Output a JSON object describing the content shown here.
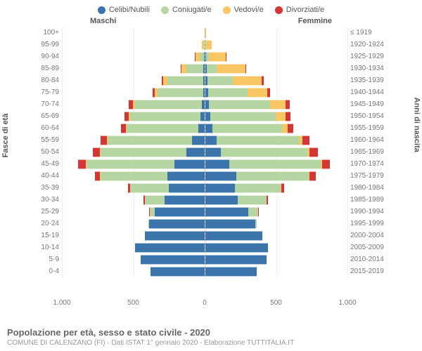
{
  "legend": [
    {
      "label": "Celibi/Nubili",
      "color": "#3a74ab"
    },
    {
      "label": "Coniugati/e",
      "color": "#b5d6a3"
    },
    {
      "label": "Vedovi/e",
      "color": "#f8c662"
    },
    {
      "label": "Divorziati/e",
      "color": "#d43535"
    }
  ],
  "header_male": "Maschi",
  "header_female": "Femmine",
  "y_left_label": "Fasce di età",
  "y_right_label": "Anni di nascita",
  "x_ticks": [
    {
      "label": "1.000",
      "pos": 0
    },
    {
      "label": "500",
      "pos": 25
    },
    {
      "label": "0",
      "pos": 50
    },
    {
      "label": "500",
      "pos": 75
    },
    {
      "label": "1.000",
      "pos": 100
    }
  ],
  "colors": {
    "single": "#3a74ab",
    "married": "#b5d6a3",
    "widowed": "#f8c662",
    "divorced": "#d43535"
  },
  "max_value": 1000,
  "rows": [
    {
      "age": "100+",
      "year": "≤ 1919",
      "m": [
        0,
        0,
        2,
        0
      ],
      "f": [
        0,
        0,
        5,
        0
      ]
    },
    {
      "age": "95-99",
      "year": "1920-1924",
      "m": [
        0,
        5,
        15,
        0
      ],
      "f": [
        0,
        5,
        40,
        0
      ]
    },
    {
      "age": "90-94",
      "year": "1925-1929",
      "m": [
        5,
        30,
        30,
        2
      ],
      "f": [
        5,
        20,
        120,
        5
      ]
    },
    {
      "age": "85-89",
      "year": "1930-1934",
      "m": [
        8,
        120,
        35,
        5
      ],
      "f": [
        10,
        70,
        200,
        8
      ]
    },
    {
      "age": "80-84",
      "year": "1935-1939",
      "m": [
        10,
        250,
        30,
        10
      ],
      "f": [
        15,
        180,
        200,
        15
      ]
    },
    {
      "age": "75-79",
      "year": "1940-1944",
      "m": [
        12,
        320,
        20,
        15
      ],
      "f": [
        18,
        280,
        140,
        20
      ]
    },
    {
      "age": "70-74",
      "year": "1945-1949",
      "m": [
        20,
        470,
        15,
        25
      ],
      "f": [
        25,
        430,
        110,
        30
      ]
    },
    {
      "age": "65-69",
      "year": "1950-1954",
      "m": [
        30,
        490,
        10,
        30
      ],
      "f": [
        35,
        460,
        70,
        35
      ]
    },
    {
      "age": "60-64",
      "year": "1955-1959",
      "m": [
        45,
        500,
        8,
        35
      ],
      "f": [
        50,
        490,
        40,
        40
      ]
    },
    {
      "age": "55-59",
      "year": "1960-1964",
      "m": [
        90,
        590,
        5,
        45
      ],
      "f": [
        80,
        580,
        25,
        50
      ]
    },
    {
      "age": "50-54",
      "year": "1965-1969",
      "m": [
        130,
        600,
        4,
        50
      ],
      "f": [
        110,
        610,
        15,
        55
      ]
    },
    {
      "age": "45-49",
      "year": "1970-1974",
      "m": [
        210,
        620,
        3,
        55
      ],
      "f": [
        170,
        640,
        10,
        55
      ]
    },
    {
      "age": "40-44",
      "year": "1975-1979",
      "m": [
        260,
        470,
        2,
        35
      ],
      "f": [
        220,
        510,
        5,
        40
      ]
    },
    {
      "age": "35-39",
      "year": "1980-1984",
      "m": [
        250,
        270,
        1,
        15
      ],
      "f": [
        210,
        320,
        3,
        20
      ]
    },
    {
      "age": "30-34",
      "year": "1985-1989",
      "m": [
        280,
        140,
        0,
        8
      ],
      "f": [
        230,
        200,
        1,
        10
      ]
    },
    {
      "age": "25-29",
      "year": "1990-1994",
      "m": [
        350,
        35,
        0,
        2
      ],
      "f": [
        300,
        70,
        0,
        3
      ]
    },
    {
      "age": "20-24",
      "year": "1995-1999",
      "m": [
        390,
        5,
        0,
        0
      ],
      "f": [
        350,
        12,
        0,
        0
      ]
    },
    {
      "age": "15-19",
      "year": "2000-2004",
      "m": [
        420,
        0,
        0,
        0
      ],
      "f": [
        400,
        0,
        0,
        0
      ]
    },
    {
      "age": "10-14",
      "year": "2005-2009",
      "m": [
        490,
        0,
        0,
        0
      ],
      "f": [
        440,
        0,
        0,
        0
      ]
    },
    {
      "age": "5-9",
      "year": "2010-2014",
      "m": [
        450,
        0,
        0,
        0
      ],
      "f": [
        430,
        0,
        0,
        0
      ]
    },
    {
      "age": "0-4",
      "year": "2015-2019",
      "m": [
        380,
        0,
        0,
        0
      ],
      "f": [
        360,
        0,
        0,
        0
      ]
    }
  ],
  "title": "Popolazione per età, sesso e stato civile - 2020",
  "subtitle": "COMUNE DI CALENZANO (FI) - Dati ISTAT 1° gennaio 2020 - Elaborazione TUTTITALIA.IT"
}
